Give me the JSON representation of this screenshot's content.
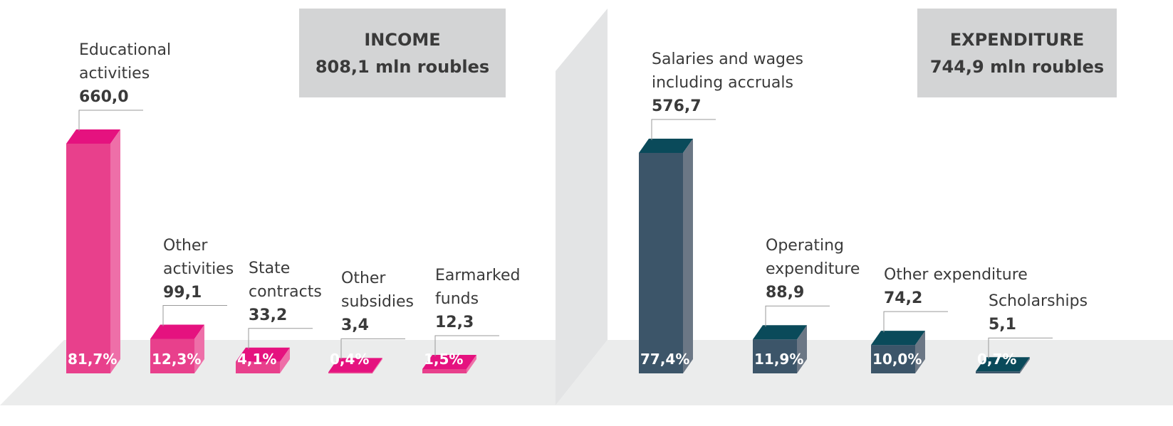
{
  "chart_data": [
    {
      "type": "bar",
      "title": "INCOME",
      "subtitle": "808,1 mln roubles",
      "categories": [
        "Educational activities",
        "Other activities",
        "State contracts",
        "Other subsidies",
        "Earmarked funds"
      ],
      "values": [
        660.0,
        99.1,
        33.2,
        3.4,
        12.3
      ],
      "value_labels": [
        "660,0",
        "99,1",
        "33,2",
        "3,4",
        "12,3"
      ],
      "shares": [
        81.7,
        12.3,
        4.1,
        0.4,
        1.5
      ],
      "share_labels": [
        "81,7%",
        "12,3%",
        "4,1%",
        "0,4%",
        "1,5%"
      ],
      "color": "#e8408c"
    },
    {
      "type": "bar",
      "title": "EXPENDITURE",
      "subtitle": "744,9 mln roubles",
      "categories": [
        "Salaries and wages including accruals",
        "Operating expenditure",
        "Other expenditure",
        "Scholarships"
      ],
      "values": [
        576.7,
        88.9,
        74.2,
        5.1
      ],
      "value_labels": [
        "576,7",
        "88,9",
        "74,2",
        "5,1"
      ],
      "shares": [
        77.4,
        11.9,
        10.0,
        0.7
      ],
      "share_labels": [
        "77,4%",
        "11,9%",
        "10,0%",
        "0,7%"
      ],
      "color": "#3c5569"
    }
  ]
}
